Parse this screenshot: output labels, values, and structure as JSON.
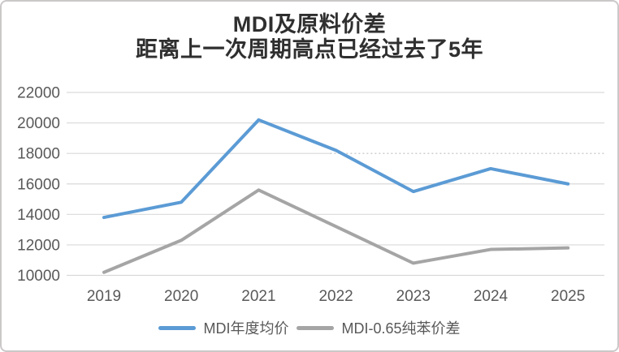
{
  "frame": {
    "background": "#ffffff",
    "border_color": "#cbc8c8"
  },
  "title": {
    "line1": "MDI及原料价差",
    "line2": "距离上一次周期高点已经过去了5年",
    "color": "#2f2f2f"
  },
  "chart_data": {
    "type": "line",
    "title": "MDI及原料价差 距离上一次周期高点已经过去了5年",
    "categories": [
      "2019",
      "2020",
      "2021",
      "2022",
      "2023",
      "2024",
      "2025"
    ],
    "series": [
      {
        "name": "MDI年度均价",
        "color": "#5B9BD5",
        "values": [
          13800,
          14800,
          20200,
          18200,
          15500,
          17000,
          16000
        ]
      },
      {
        "name": "MDI-0.65纯苯价差",
        "color": "#A5A5A5",
        "values": [
          10200,
          12300,
          15600,
          13200,
          10800,
          11700,
          11800
        ]
      }
    ],
    "xlabel": "",
    "ylabel": "",
    "ylim": [
      10000,
      22000
    ],
    "yticks": [
      10000,
      12000,
      14000,
      16000,
      18000,
      20000,
      22000
    ],
    "grid": true,
    "gridline_color": "#D9D9D9",
    "axis_label_color": "#595959",
    "line_width": 4,
    "legend_position": "bottom",
    "annotations": [
      {
        "type": "dotted_hline_segment",
        "y": 18000,
        "x_start_ratio": 0.49,
        "color": "#c9c9c9"
      }
    ]
  },
  "legend": {
    "items": [
      {
        "label": "MDI年度均价",
        "color": "#5B9BD5"
      },
      {
        "label": "MDI-0.65纯苯价差",
        "color": "#A5A5A5"
      }
    ]
  }
}
